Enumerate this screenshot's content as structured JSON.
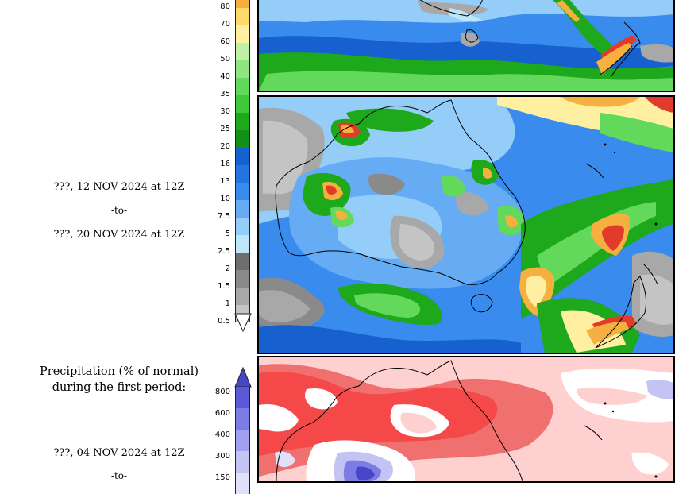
{
  "forecast_period_2": {
    "start_label": "???, 12 NOV 2024 at 12Z",
    "to_label": "-to-",
    "end_label": "???, 20 NOV 2024 at 12Z"
  },
  "normal_section": {
    "title_line1": "Precipitation (% of normal)",
    "title_line2": "during the first period:",
    "start_label": "???, 04 NOV 2024 at 12Z",
    "to_label": "-to-"
  },
  "precip_colorbar": {
    "levels": [
      {
        "label": "80",
        "color": "#f5b040"
      },
      {
        "label": "70",
        "color": "#fdd96a"
      },
      {
        "label": "60",
        "color": "#fef0a0"
      },
      {
        "label": "50",
        "color": "#bff2a8"
      },
      {
        "label": "40",
        "color": "#8fe680"
      },
      {
        "label": "35",
        "color": "#62d95a"
      },
      {
        "label": "30",
        "color": "#3ec83a"
      },
      {
        "label": "25",
        "color": "#1ea81c"
      },
      {
        "label": "20",
        "color": "#12901a"
      },
      {
        "label": "16",
        "color": "#1660d0"
      },
      {
        "label": "13",
        "color": "#2474e0"
      },
      {
        "label": "10",
        "color": "#3a8bee"
      },
      {
        "label": "7.5",
        "color": "#66acf5"
      },
      {
        "label": "5",
        "color": "#93cdf8"
      },
      {
        "label": "2.5",
        "color": "#bde6fb"
      },
      {
        "label": "2",
        "color": "#6e6e6e"
      },
      {
        "label": "1.5",
        "color": "#8a8a8a"
      },
      {
        "label": "1",
        "color": "#a8a8a8"
      },
      {
        "label": "0.5",
        "color": "#c4c4c4"
      }
    ]
  },
  "pct_colorbar": {
    "levels": [
      {
        "label": "800",
        "color": "#5a5ad8"
      },
      {
        "label": "600",
        "color": "#7c7ce4"
      },
      {
        "label": "400",
        "color": "#a0a0ee"
      },
      {
        "label": "300",
        "color": "#c4c4f4"
      },
      {
        "label": "150",
        "color": "#e0e0fa"
      }
    ]
  }
}
